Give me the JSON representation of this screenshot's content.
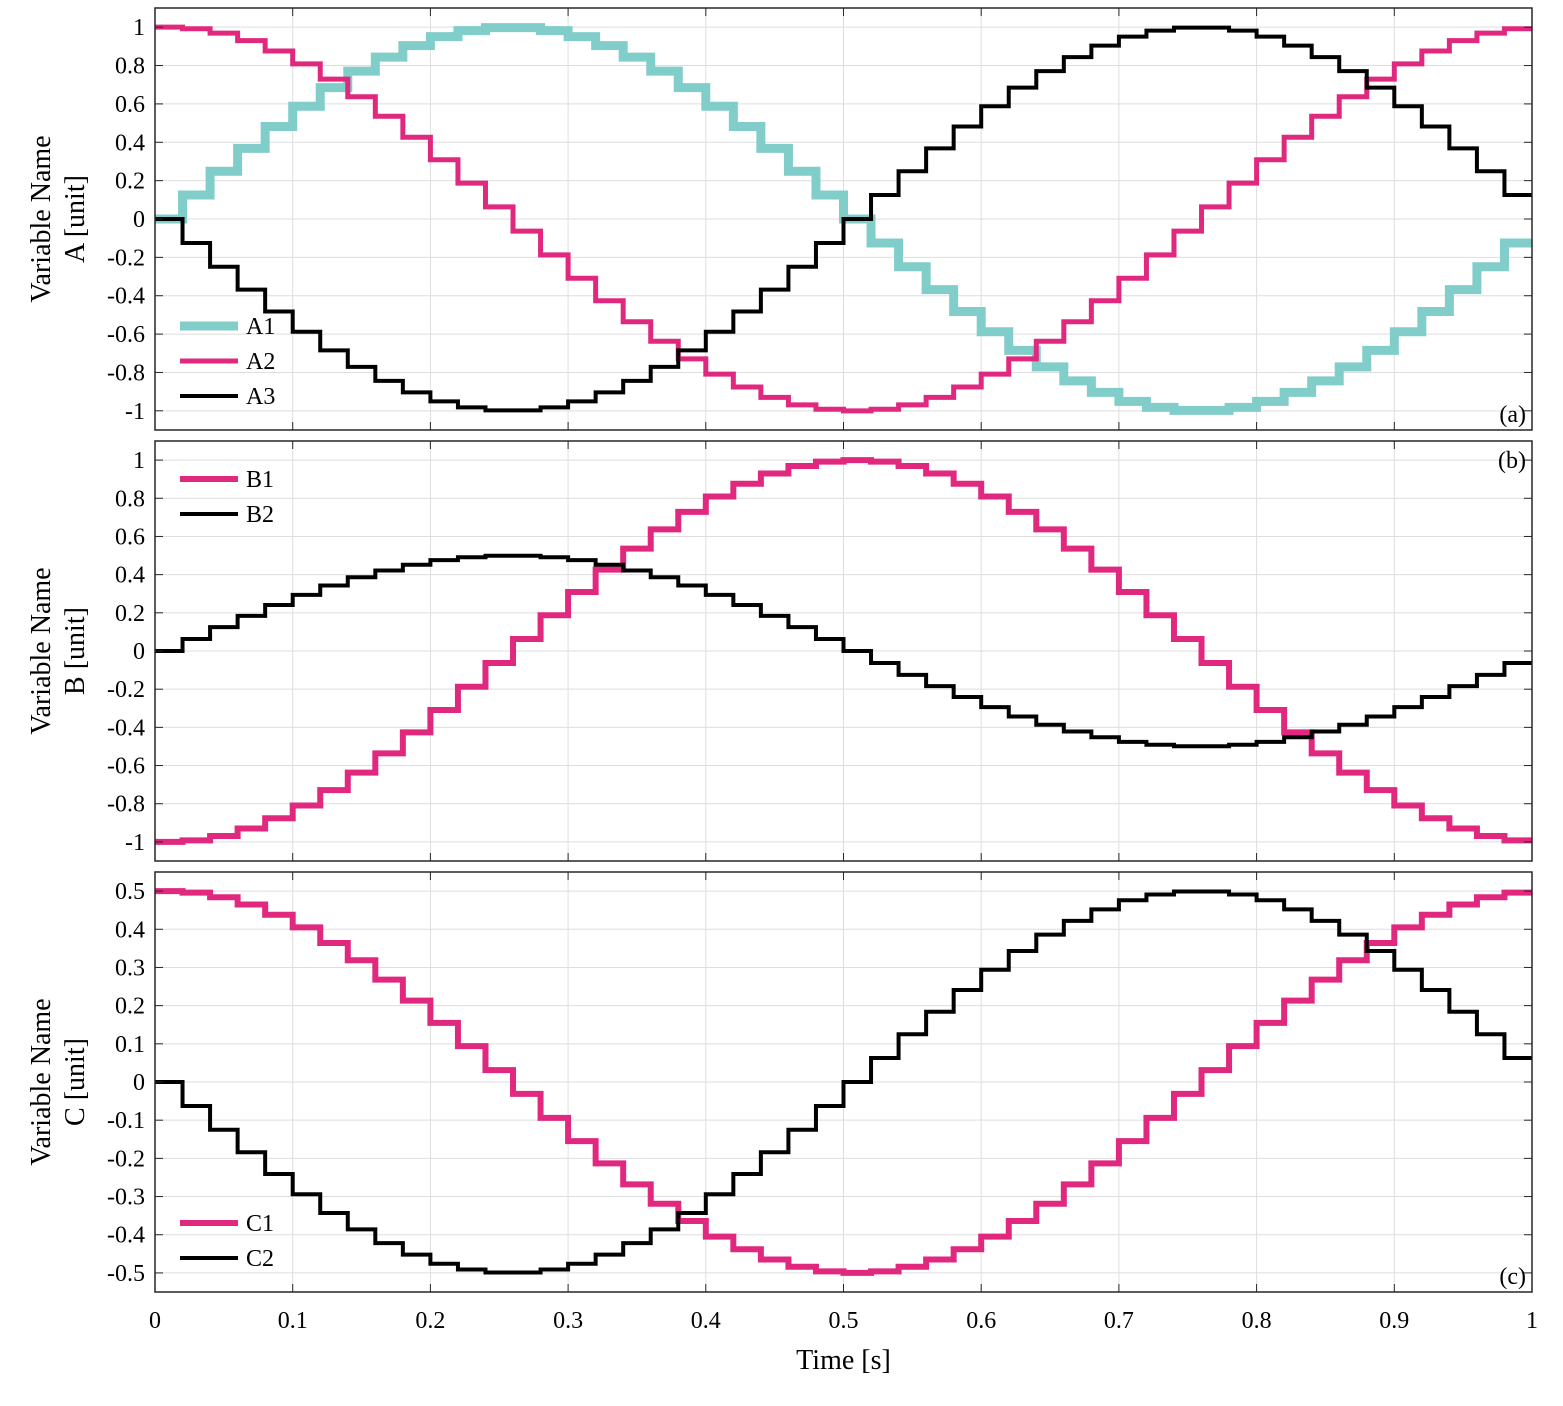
{
  "chart_data": [
    {
      "type": "line",
      "step": "stairs",
      "panel_tag": "(a)",
      "ylabel_lines": [
        "Variable Name",
        "A [unit]"
      ],
      "ylim": [
        -1.1,
        1.1
      ],
      "yticks": [
        1,
        0.8,
        0.6,
        0.4,
        0.2,
        0,
        -0.2,
        -0.4,
        -0.6,
        -0.8,
        -1
      ],
      "ytick_labels": [
        "1",
        "0.8",
        "0.6",
        "0.4",
        "0.2",
        "0",
        "-0.2",
        "-0.4",
        "-0.6",
        "-0.8",
        "-1"
      ],
      "xlim": [
        0,
        1
      ],
      "xticks": [
        0,
        0.1,
        0.2,
        0.3,
        0.4,
        0.5,
        0.6,
        0.7,
        0.8,
        0.9,
        1
      ],
      "grid": true,
      "legend_position": "bottom-left",
      "series": [
        {
          "name": "A1",
          "color": "#80cdc9",
          "formula": "sin",
          "amplitude": 1,
          "step": 0.02,
          "x_end": 1,
          "values": [
            0.0,
            0.125,
            0.249,
            0.368,
            0.482,
            0.588,
            0.685,
            0.771,
            0.844,
            0.904,
            0.951,
            0.982,
            0.998,
            0.998,
            0.982,
            0.951,
            0.904,
            0.844,
            0.771,
            0.685,
            0.588,
            0.482,
            0.368,
            0.249,
            0.125,
            0.0,
            -0.125,
            -0.249,
            -0.368,
            -0.482,
            -0.588,
            -0.685,
            -0.771,
            -0.844,
            -0.904,
            -0.951,
            -0.982,
            -0.998,
            -0.998,
            -0.982,
            -0.951,
            -0.904,
            -0.844,
            -0.771,
            -0.685,
            -0.588,
            -0.482,
            -0.368,
            -0.249,
            -0.125
          ]
        },
        {
          "name": "A2",
          "color": "#e0287f",
          "formula": "cos",
          "amplitude": 1,
          "step": 0.02,
          "x_end": 1,
          "values": [
            1.0,
            0.992,
            0.969,
            0.93,
            0.876,
            0.809,
            0.729,
            0.637,
            0.536,
            0.426,
            0.309,
            0.187,
            0.063,
            -0.063,
            -0.187,
            -0.309,
            -0.426,
            -0.536,
            -0.637,
            -0.729,
            -0.809,
            -0.876,
            -0.93,
            -0.969,
            -0.992,
            -1.0,
            -0.992,
            -0.969,
            -0.93,
            -0.876,
            -0.809,
            -0.729,
            -0.637,
            -0.536,
            -0.426,
            -0.309,
            -0.187,
            -0.063,
            0.063,
            0.187,
            0.309,
            0.426,
            0.536,
            0.637,
            0.729,
            0.809,
            0.876,
            0.93,
            0.969,
            0.992
          ]
        },
        {
          "name": "A3",
          "color": "#000000",
          "formula": "-sin",
          "amplitude": 1,
          "step": 0.02,
          "x_end": 1,
          "values": [
            0.0,
            -0.125,
            -0.249,
            -0.368,
            -0.482,
            -0.588,
            -0.685,
            -0.771,
            -0.844,
            -0.904,
            -0.951,
            -0.982,
            -0.998,
            -0.998,
            -0.982,
            -0.951,
            -0.904,
            -0.844,
            -0.771,
            -0.685,
            -0.588,
            -0.482,
            -0.368,
            -0.249,
            -0.125,
            0.0,
            0.125,
            0.249,
            0.368,
            0.482,
            0.588,
            0.685,
            0.771,
            0.844,
            0.904,
            0.951,
            0.982,
            0.998,
            0.998,
            0.982,
            0.951,
            0.904,
            0.844,
            0.771,
            0.685,
            0.588,
            0.482,
            0.368,
            0.249,
            0.125
          ]
        }
      ]
    },
    {
      "type": "line",
      "step": "stairs",
      "panel_tag": "(b)",
      "ylabel_lines": [
        "Variable Name",
        "B [unit]"
      ],
      "ylim": [
        -1.1,
        1.1
      ],
      "yticks": [
        1,
        0.8,
        0.6,
        0.4,
        0.2,
        0,
        -0.2,
        -0.4,
        -0.6,
        -0.8,
        -1
      ],
      "ytick_labels": [
        "1",
        "0.8",
        "0.6",
        "0.4",
        "0.2",
        "0",
        "-0.2",
        "-0.4",
        "-0.6",
        "-0.8",
        "-1"
      ],
      "xlim": [
        0,
        1
      ],
      "xticks": [
        0,
        0.1,
        0.2,
        0.3,
        0.4,
        0.5,
        0.6,
        0.7,
        0.8,
        0.9,
        1
      ],
      "grid": true,
      "legend_position": "top-left",
      "series": [
        {
          "name": "B1",
          "color": "#e0287f",
          "formula": "-cos",
          "amplitude": 1,
          "step": 0.02,
          "x_end": 1,
          "values": [
            -1.0,
            -0.992,
            -0.969,
            -0.93,
            -0.876,
            -0.809,
            -0.729,
            -0.637,
            -0.536,
            -0.426,
            -0.309,
            -0.187,
            -0.063,
            0.063,
            0.187,
            0.309,
            0.426,
            0.536,
            0.637,
            0.729,
            0.809,
            0.876,
            0.93,
            0.969,
            0.992,
            1.0,
            0.992,
            0.969,
            0.93,
            0.876,
            0.809,
            0.729,
            0.637,
            0.536,
            0.426,
            0.309,
            0.187,
            0.063,
            -0.063,
            -0.187,
            -0.309,
            -0.426,
            -0.536,
            -0.637,
            -0.729,
            -0.809,
            -0.876,
            -0.93,
            -0.969,
            -0.992
          ]
        },
        {
          "name": "B2",
          "color": "#000000",
          "formula": "sin",
          "amplitude": 0.5,
          "step": 0.02,
          "x_end": 1,
          "values": [
            0.0,
            0.063,
            0.125,
            0.184,
            0.241,
            0.294,
            0.343,
            0.386,
            0.422,
            0.452,
            0.476,
            0.491,
            0.499,
            0.499,
            0.491,
            0.476,
            0.452,
            0.422,
            0.386,
            0.343,
            0.294,
            0.241,
            0.184,
            0.125,
            0.063,
            0.0,
            -0.063,
            -0.125,
            -0.184,
            -0.241,
            -0.294,
            -0.343,
            -0.386,
            -0.422,
            -0.452,
            -0.476,
            -0.491,
            -0.499,
            -0.499,
            -0.491,
            -0.476,
            -0.452,
            -0.422,
            -0.386,
            -0.343,
            -0.294,
            -0.241,
            -0.184,
            -0.125,
            -0.063
          ]
        }
      ]
    },
    {
      "type": "line",
      "step": "stairs",
      "panel_tag": "(c)",
      "ylabel_lines": [
        "Variable Name",
        "C [unit]"
      ],
      "ylim": [
        -0.55,
        0.55
      ],
      "yticks": [
        0.5,
        0.4,
        0.3,
        0.2,
        0.1,
        0,
        -0.1,
        -0.2,
        -0.3,
        -0.4,
        -0.5
      ],
      "ytick_labels": [
        "0.5",
        "0.4",
        "0.3",
        "0.2",
        "0.1",
        "0",
        "-0.1",
        "-0.2",
        "-0.3",
        "-0.4",
        "-0.5"
      ],
      "xlim": [
        0,
        1
      ],
      "xticks": [
        0,
        0.1,
        0.2,
        0.3,
        0.4,
        0.5,
        0.6,
        0.7,
        0.8,
        0.9,
        1
      ],
      "xtick_labels": [
        "0",
        "0.1",
        "0.2",
        "0.3",
        "0.4",
        "0.5",
        "0.6",
        "0.7",
        "0.8",
        "0.9",
        "1"
      ],
      "xlabel": "Time [s]",
      "grid": true,
      "legend_position": "bottom-left",
      "series": [
        {
          "name": "C1",
          "color": "#e0287f",
          "formula": "cos",
          "amplitude": 0.5,
          "step": 0.02,
          "x_end": 1,
          "values": [
            0.5,
            0.496,
            0.484,
            0.465,
            0.438,
            0.405,
            0.364,
            0.319,
            0.268,
            0.213,
            0.155,
            0.094,
            0.031,
            -0.031,
            -0.094,
            -0.155,
            -0.213,
            -0.268,
            -0.319,
            -0.364,
            -0.405,
            -0.438,
            -0.465,
            -0.484,
            -0.496,
            -0.5,
            -0.496,
            -0.484,
            -0.465,
            -0.438,
            -0.405,
            -0.364,
            -0.319,
            -0.268,
            -0.213,
            -0.155,
            -0.094,
            -0.031,
            0.031,
            0.094,
            0.155,
            0.213,
            0.268,
            0.319,
            0.364,
            0.405,
            0.438,
            0.465,
            0.484,
            0.496
          ]
        },
        {
          "name": "C2",
          "color": "#000000",
          "formula": "-sin",
          "amplitude": 0.5,
          "step": 0.02,
          "x_end": 1,
          "values": [
            0.0,
            -0.063,
            -0.125,
            -0.184,
            -0.241,
            -0.294,
            -0.343,
            -0.386,
            -0.422,
            -0.452,
            -0.476,
            -0.491,
            -0.499,
            -0.499,
            -0.491,
            -0.476,
            -0.452,
            -0.422,
            -0.386,
            -0.343,
            -0.294,
            -0.241,
            -0.184,
            -0.125,
            -0.063,
            0.0,
            0.063,
            0.125,
            0.184,
            0.241,
            0.294,
            0.343,
            0.386,
            0.422,
            0.452,
            0.476,
            0.491,
            0.499,
            0.499,
            0.491,
            0.476,
            0.452,
            0.422,
            0.386,
            0.343,
            0.294,
            0.241,
            0.184,
            0.125,
            0.063
          ]
        }
      ]
    }
  ]
}
